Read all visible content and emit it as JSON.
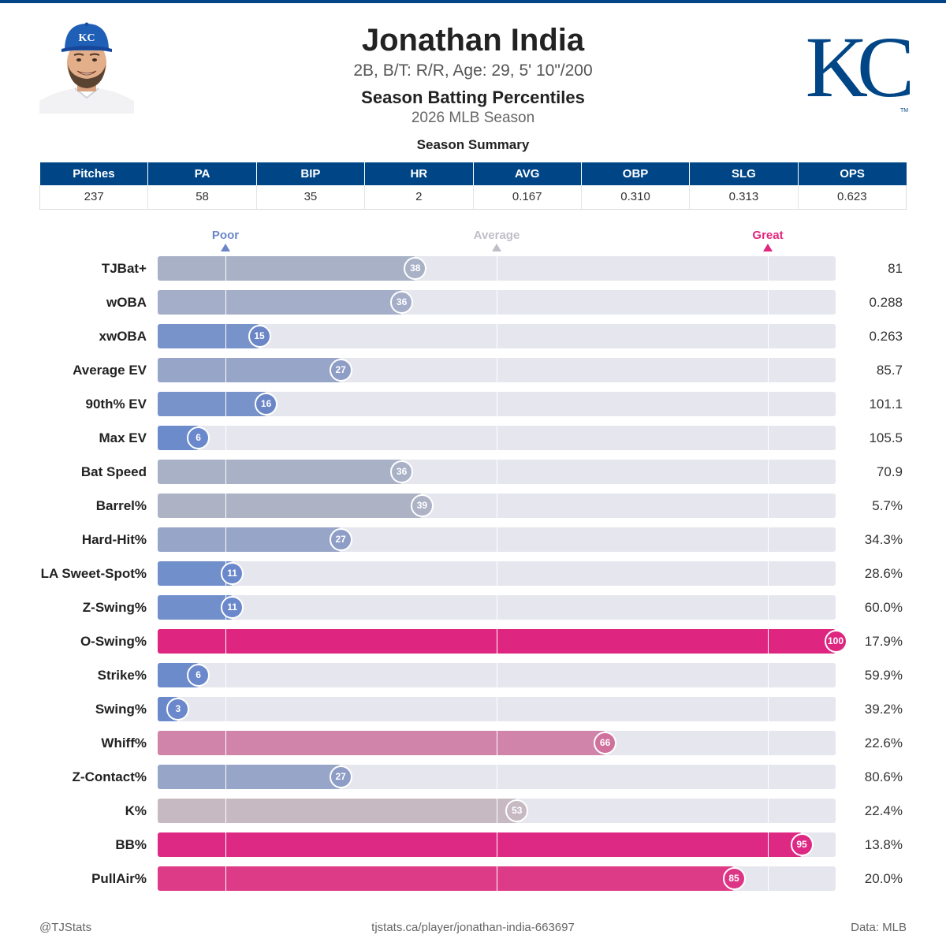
{
  "header": {
    "name": "Jonathan India",
    "bio": "2B, B/T: R/R, Age: 29, 5' 10\"/200",
    "title": "Season Batting Percentiles",
    "season": "2026 MLB Season",
    "logo_text": "KC",
    "cap_text": "KC",
    "trademark": "TM"
  },
  "colors": {
    "brand": "#004687",
    "poor": "#6b86c8",
    "average": "#bfbfc8",
    "great": "#e0267f",
    "track": "#e6e7ee"
  },
  "summary": {
    "title": "Season Summary",
    "headers": [
      "Pitches",
      "PA",
      "BIP",
      "HR",
      "AVG",
      "OBP",
      "SLG",
      "OPS"
    ],
    "values": [
      "237",
      "58",
      "35",
      "2",
      "0.167",
      "0.310",
      "0.313",
      "0.623"
    ]
  },
  "markers": {
    "poor": "Poor",
    "average": "Average",
    "great": "Great"
  },
  "chart_data": {
    "type": "bar",
    "orientation": "horizontal",
    "xlim": [
      0,
      100
    ],
    "reference_lines": [
      10,
      50,
      90
    ],
    "reference_labels": [
      "Poor",
      "Average",
      "Great"
    ],
    "categories": [
      "TJBat+",
      "wOBA",
      "xwOBA",
      "Average EV",
      "90th% EV",
      "Max EV",
      "Bat Speed",
      "Barrel%",
      "Hard-Hit%",
      "LA Sweet-Spot%",
      "Z-Swing%",
      "O-Swing%",
      "Strike%",
      "Swing%",
      "Whiff%",
      "Z-Contact%",
      "K%",
      "BB%",
      "PullAir%"
    ],
    "percentiles": [
      38,
      36,
      15,
      27,
      16,
      6,
      36,
      39,
      27,
      11,
      11,
      100,
      6,
      3,
      66,
      27,
      53,
      95,
      85
    ],
    "stat_values": [
      "81",
      "0.288",
      "0.263",
      "85.7",
      "101.1",
      "105.5",
      "70.9",
      "5.7%",
      "34.3%",
      "28.6%",
      "60.0%",
      "17.9%",
      "59.9%",
      "39.2%",
      "22.6%",
      "80.6%",
      "22.4%",
      "13.8%",
      "20.0%"
    ],
    "bar_colors": [
      "#a9b1c6",
      "#a5aec8",
      "#7893ca",
      "#97a5c8",
      "#7893ca",
      "#6c8bca",
      "#a9b1c6",
      "#adb3c5",
      "#97a5c8",
      "#7190cb",
      "#7190cb",
      "#de2680",
      "#6c8bca",
      "#6a89cb",
      "#d084aa",
      "#97a5c8",
      "#c7b9c1",
      "#dd2983",
      "#dd3b88"
    ],
    "dot_colors": [
      "#a9b1c6",
      "#a5aec8",
      "#6a86c6",
      "#8e9dc6",
      "#6a86c6",
      "#6a88cb",
      "#a9b1c6",
      "#adb3c5",
      "#8e9dc6",
      "#6a88cb",
      "#6a88cb",
      "#de2680",
      "#6a88cb",
      "#6a88cb",
      "#d0709c",
      "#8e9dc6",
      "#c7b9c1",
      "#dd2983",
      "#dd3585"
    ]
  },
  "footer": {
    "handle": "@TJStats",
    "url": "tjstats.ca/player/jonathan-india-663697",
    "source": "Data: MLB"
  }
}
